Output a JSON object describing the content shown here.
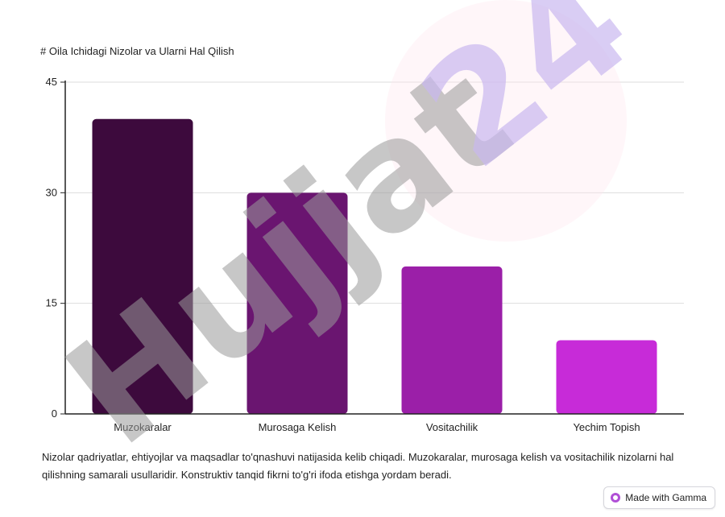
{
  "chart_data": {
    "type": "bar",
    "title": "# Oila Ichidagi Nizolar va Ularni Hal Qilish",
    "categories": [
      "Muzokaralar",
      "Murosaga Kelish",
      "Vositachilik",
      "Yechim Topish"
    ],
    "values": [
      40,
      30,
      20,
      10
    ],
    "colors": [
      "#3d0a3d",
      "#6a1570",
      "#9b1fa8",
      "#c72bd8"
    ],
    "y_ticks": [
      0,
      15,
      30,
      45
    ],
    "ylim": [
      0,
      45
    ],
    "xlabel": "",
    "ylabel": "",
    "grid": true,
    "legend": "none"
  },
  "description": " Nizolar qadriyatlar, ehtiyojlar va maqsadlar to'qnashuvi natijasida kelib chiqadi. Muzokaralar, murosaga kelish va vositachilik nizolarni hal qilishning samarali usullaridir. Konstruktiv tanqid fikrni to'g'ri ifoda etishga yordam beradi.",
  "watermark": {
    "text": "Hujjat24",
    "colors": [
      "#9a9a9a",
      "#c9b8f0"
    ]
  },
  "badge": {
    "label": "Made with Gamma",
    "icon": "gamma-logo-icon"
  }
}
